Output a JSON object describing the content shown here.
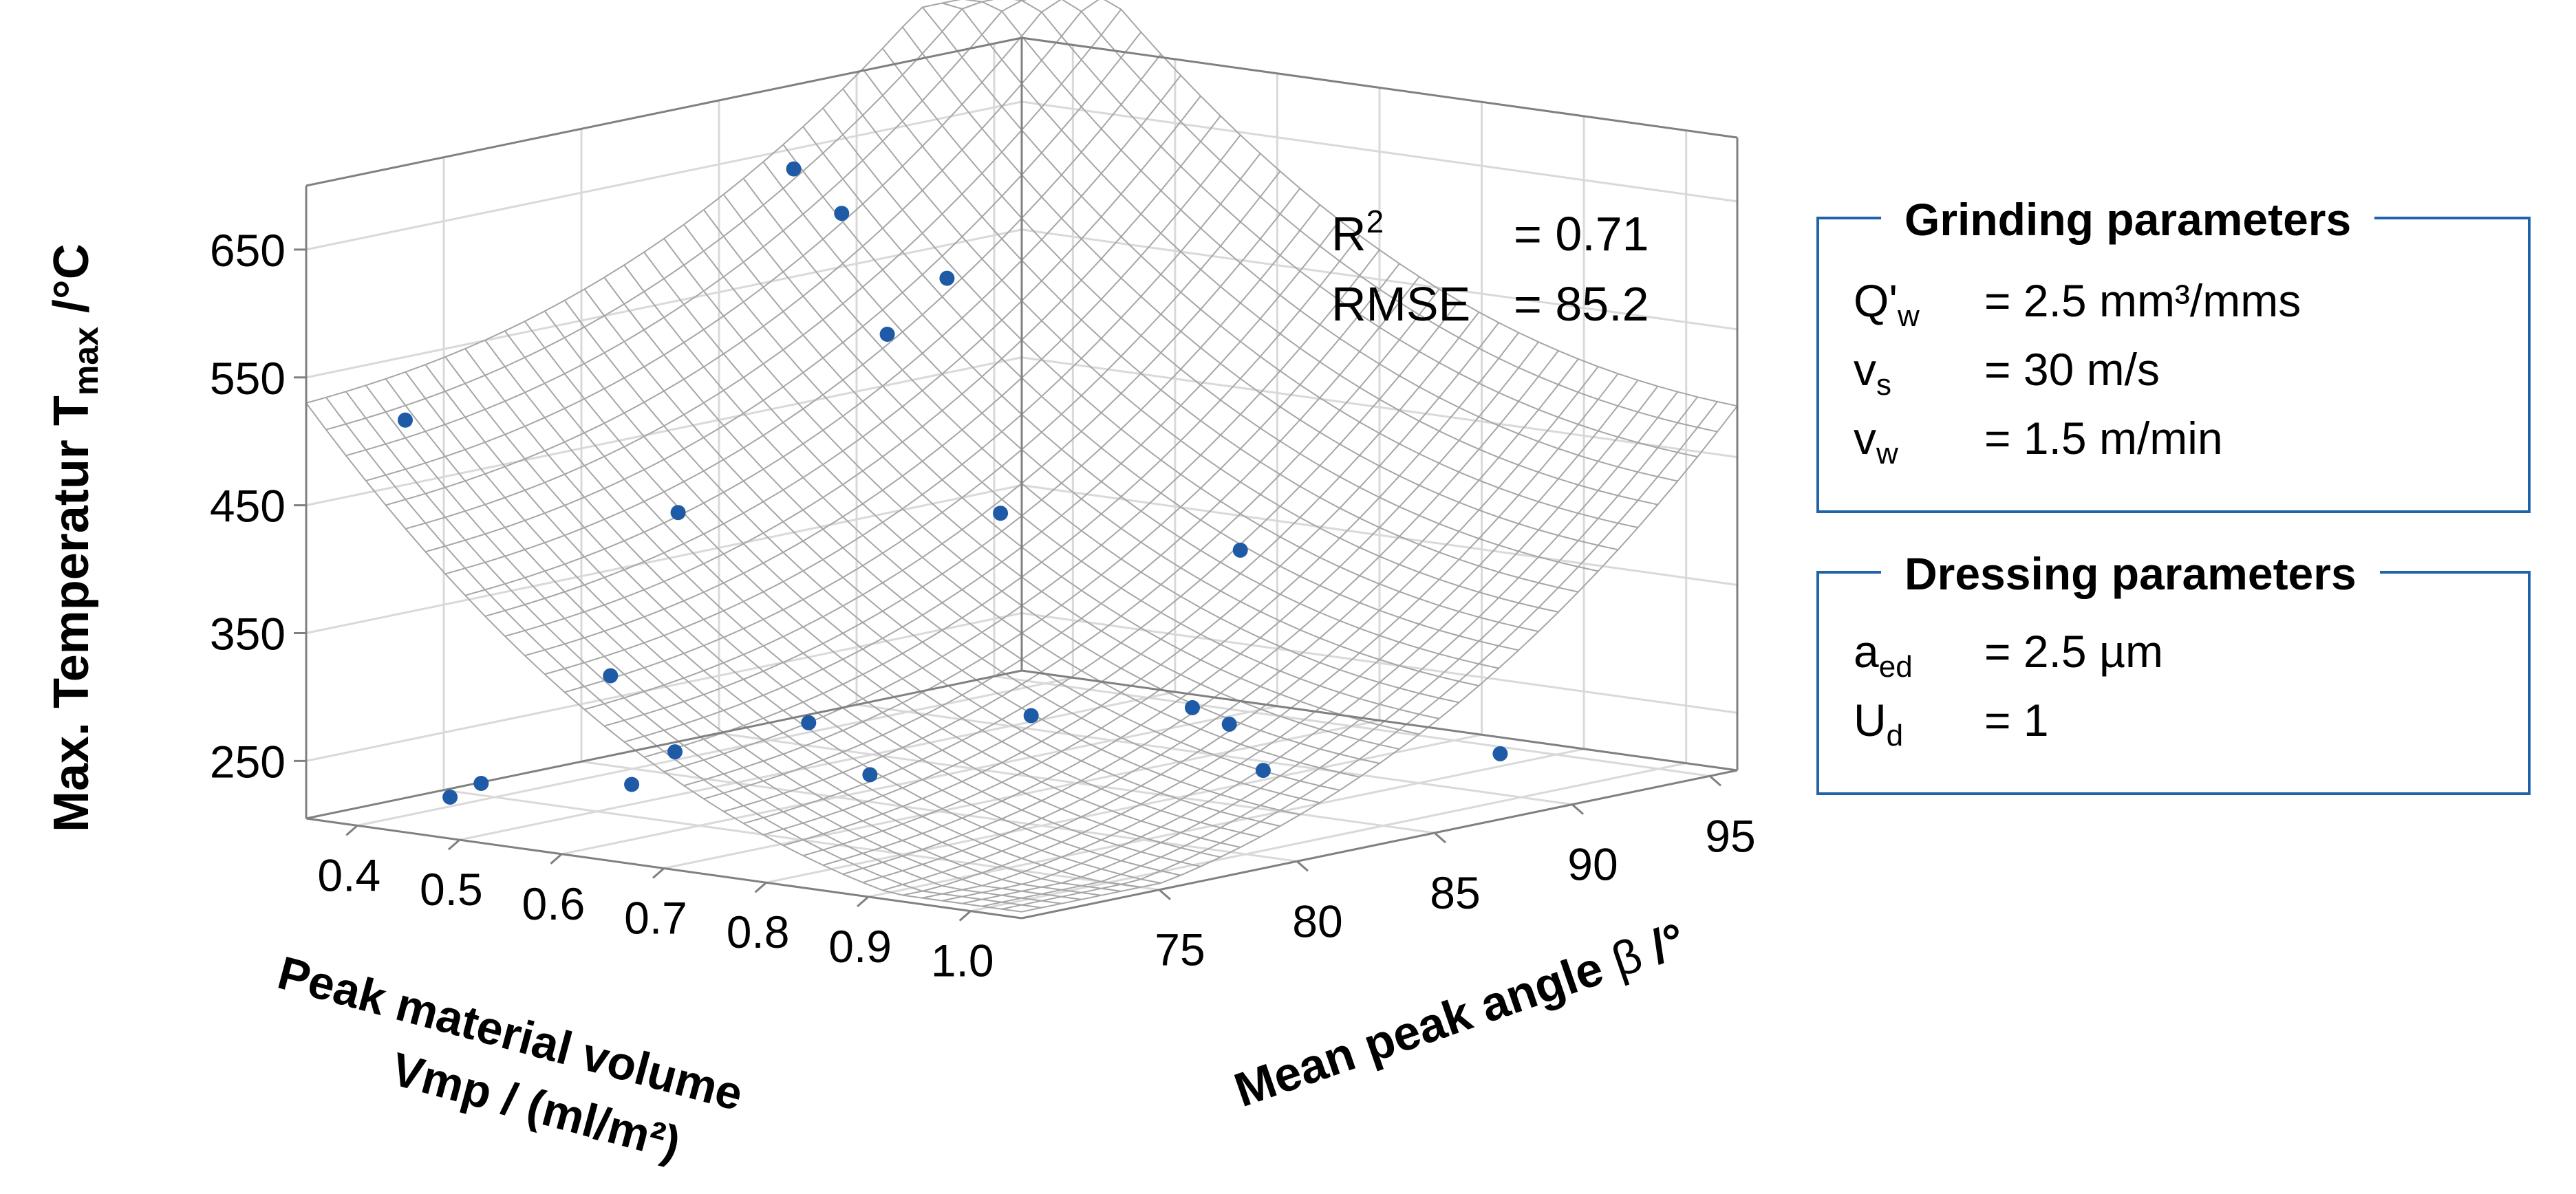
{
  "chart_data": {
    "type": "surface3d_scatter",
    "zlabel": "Max. Temperatur T",
    "zlabel_sub": "max",
    "zlabel_unit": " /°C",
    "xlabel_line1": "Peak material volume",
    "xlabel_line2": "Vmp  / (ml/m²)",
    "ylabel": "Mean peak angle ",
    "ylabel_symbol": "β",
    "ylabel_unit": " /°",
    "x_ticks": [
      "0.4",
      "0.5",
      "0.6",
      "0.7",
      "0.8",
      "0.9",
      "1.0"
    ],
    "x_tick_values": [
      0.4,
      0.5,
      0.6,
      0.7,
      0.8,
      0.9,
      1.0
    ],
    "y_ticks": [
      "75",
      "80",
      "85",
      "90",
      "95"
    ],
    "y_tick_values": [
      75,
      80,
      85,
      90,
      95
    ],
    "z_ticks": [
      "250",
      "350",
      "450",
      "550",
      "650"
    ],
    "z_tick_values": [
      250,
      350,
      450,
      550,
      650
    ],
    "xlim": [
      0.35,
      1.05
    ],
    "ylim": [
      70,
      96
    ],
    "zlim": [
      205,
      700
    ],
    "surface_mesh_color": "#a6a6a6",
    "marker_color": "#1f5aa6",
    "points": [
      {
        "vmp": 0.95,
        "beta": 71.0,
        "t": 690
      },
      {
        "vmp": 0.42,
        "beta": 71.0,
        "t": 520
      },
      {
        "vmp": 0.66,
        "beta": 72.0,
        "t": 470
      },
      {
        "vmp": 0.45,
        "beta": 84.0,
        "t": 662
      },
      {
        "vmp": 0.47,
        "beta": 85.0,
        "t": 625
      },
      {
        "vmp": 0.73,
        "beta": 77.0,
        "t": 595
      },
      {
        "vmp": 0.76,
        "beta": 80.0,
        "t": 445
      },
      {
        "vmp": 0.86,
        "beta": 85.0,
        "t": 405
      },
      {
        "vmp": 0.54,
        "beta": 74.0,
        "t": 320
      },
      {
        "vmp": 0.68,
        "beta": 76.0,
        "t": 290
      },
      {
        "vmp": 0.79,
        "beta": 80.0,
        "t": 290
      },
      {
        "vmp": 0.99,
        "beta": 81.0,
        "t": 265
      },
      {
        "vmp": 0.93,
        "beta": 82.0,
        "t": 290
      },
      {
        "vmp": 0.84,
        "beta": 84.0,
        "t": 284
      },
      {
        "vmp": 0.63,
        "beta": 73.0,
        "t": 275
      },
      {
        "vmp": 0.74,
        "beta": 76.0,
        "t": 256
      },
      {
        "vmp": 1.02,
        "beta": 88.5,
        "t": 248
      },
      {
        "vmp": 0.41,
        "beta": 73.0,
        "t": 215
      },
      {
        "vmp": 0.4,
        "beta": 74.5,
        "t": 218
      },
      {
        "vmp": 0.48,
        "beta": 77.0,
        "t": 215
      }
    ]
  },
  "stats": {
    "r2_label": "R",
    "r2_sup": "2",
    "r2_value": "= 0.71",
    "rmse_label": "RMSE",
    "rmse_value": "= 85.2"
  },
  "grinding": {
    "title": "Grinding parameters",
    "p1_sym": "Q'",
    "p1_sub": "w",
    "p1_val": "= 2.5 mm³/mms",
    "p2_sym": "v",
    "p2_sub": "s",
    "p2_val": "= 30 m/s",
    "p3_sym": "v",
    "p3_sub": "w",
    "p3_val": "= 1.5 m/min"
  },
  "dressing": {
    "title": "Dressing parameters",
    "p1_sym": "a",
    "p1_sub": "ed",
    "p1_val": "= 2.5 µm",
    "p2_sym": "U",
    "p2_sub": "d",
    "p2_val": "= 1"
  },
  "colors": {
    "box_border": "#1f63a8",
    "axis": "#808080",
    "grid": "#d9d9d9"
  }
}
